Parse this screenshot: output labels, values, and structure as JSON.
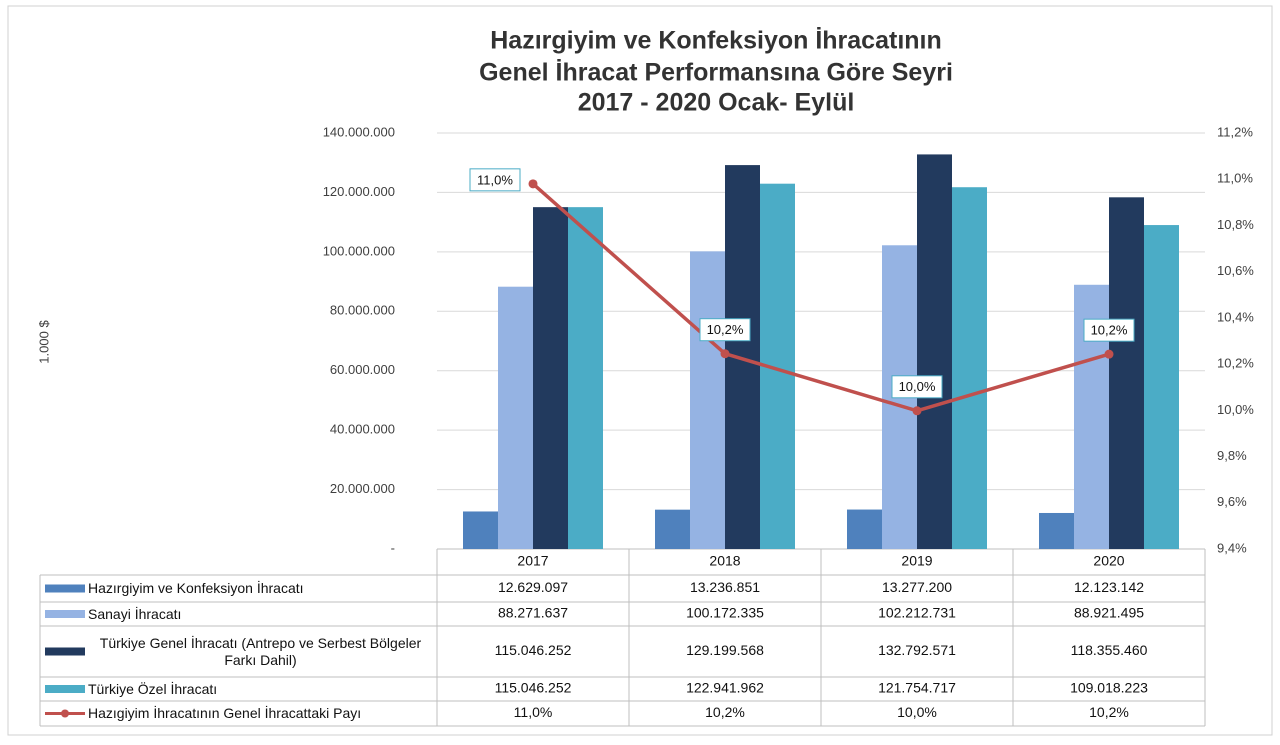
{
  "chart_data": {
    "type": "bar-line-table",
    "title": [
      "Hazırgiyim ve Konfeksiyon İhracatının",
      "Genel İhracat Performansına Göre Seyri",
      "2017 - 2020 Ocak- Eylül"
    ],
    "ylabel": "1.000 $",
    "categories": [
      "2017",
      "2018",
      "2019",
      "2020"
    ],
    "series": [
      {
        "name": "Hazırgiyim ve Konfeksiyon İhracatı",
        "color": "#4f81bd",
        "values": [
          12629097,
          13236851,
          13277200,
          12123142
        ],
        "value_labels": [
          "12.629.097",
          "13.236.851",
          "13.277.200",
          "12.123.142"
        ]
      },
      {
        "name": "Sanayi İhracatı",
        "color": "#95b3e3",
        "values": [
          88271637,
          100172335,
          102212731,
          88921495
        ],
        "value_labels": [
          "88.271.637",
          "100.172.335",
          "102.212.731",
          "88.921.495"
        ]
      },
      {
        "name": "Türkiye Genel İhracatı (Antrepo ve Serbest Bölgeler Farkı Dahil)",
        "color": "#223a5e",
        "values": [
          115046252,
          129199568,
          132792571,
          118355460
        ],
        "value_labels": [
          "115.046.252",
          "129.199.568",
          "132.792.571",
          "118.355.460"
        ]
      },
      {
        "name": "Türkiye Özel İhracatı",
        "color": "#4bacc6",
        "values": [
          115046252,
          122941962,
          121754717,
          109018223
        ],
        "value_labels": [
          "115.046.252",
          "122.941.962",
          "121.754.717",
          "109.018.223"
        ]
      },
      {
        "name": "Hazıgiyim İhracatının Genel İhracattaki Payı",
        "color": "#c0504d",
        "axis": "y2",
        "values": [
          10.98,
          10.245,
          9.998,
          10.243
        ],
        "value_labels": [
          "11,0%",
          "10,2%",
          "10,0%",
          "10,2%"
        ]
      }
    ],
    "ylim": [
      0,
      140000000
    ],
    "yticks": [
      {
        "value": 0,
        "label": "-"
      },
      {
        "value": 20000000,
        "label": "20.000.000"
      },
      {
        "value": 40000000,
        "label": "40.000.000"
      },
      {
        "value": 60000000,
        "label": "60.000.000"
      },
      {
        "value": 80000000,
        "label": "80.000.000"
      },
      {
        "value": 100000000,
        "label": "100.000.000"
      },
      {
        "value": 120000000,
        "label": "120.000.000"
      },
      {
        "value": 140000000,
        "label": "140.000.000"
      }
    ],
    "y2lim": [
      9.4,
      11.2
    ],
    "y2ticks": [
      {
        "value": 9.4,
        "label": "9,4%"
      },
      {
        "value": 9.6,
        "label": "9,6%"
      },
      {
        "value": 9.8,
        "label": "9,8%"
      },
      {
        "value": 10.0,
        "label": "10,0%"
      },
      {
        "value": 10.2,
        "label": "10,2%"
      },
      {
        "value": 10.4,
        "label": "10,4%"
      },
      {
        "value": 10.6,
        "label": "10,6%"
      },
      {
        "value": 10.8,
        "label": "10,8%"
      },
      {
        "value": 11.0,
        "label": "11,0%"
      },
      {
        "value": 11.2,
        "label": "11,2%"
      }
    ],
    "grid": true
  }
}
